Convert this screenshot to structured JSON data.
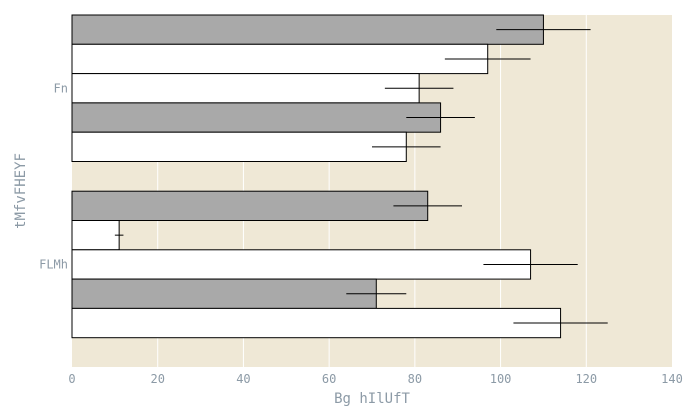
{
  "chart_data": {
    "type": "bar",
    "orientation": "horizontal",
    "xlabel": "Bg  hIlUfT",
    "ylabel": "tMfvFHEYF",
    "xlim": [
      0,
      140
    ],
    "xticks": [
      0,
      20,
      40,
      60,
      80,
      100,
      120,
      140
    ],
    "grid": true,
    "categories": [
      "Fn",
      "FLMh"
    ],
    "series": [
      {
        "values": [
          110,
          83
        ],
        "errors": [
          11,
          8
        ],
        "color": "#a9a9a9"
      },
      {
        "values": [
          97,
          11
        ],
        "errors": [
          10,
          1
        ],
        "color": "#ffffff"
      },
      {
        "values": [
          81,
          107
        ],
        "errors": [
          8,
          11
        ],
        "color": "#ffffff"
      },
      {
        "values": [
          86,
          71
        ],
        "errors": [
          8,
          7
        ],
        "color": "#a9a9a9"
      },
      {
        "values": [
          78,
          114
        ],
        "errors": [
          8,
          11
        ],
        "color": "#ffffff"
      }
    ],
    "plot_background": "#efe8d6"
  }
}
